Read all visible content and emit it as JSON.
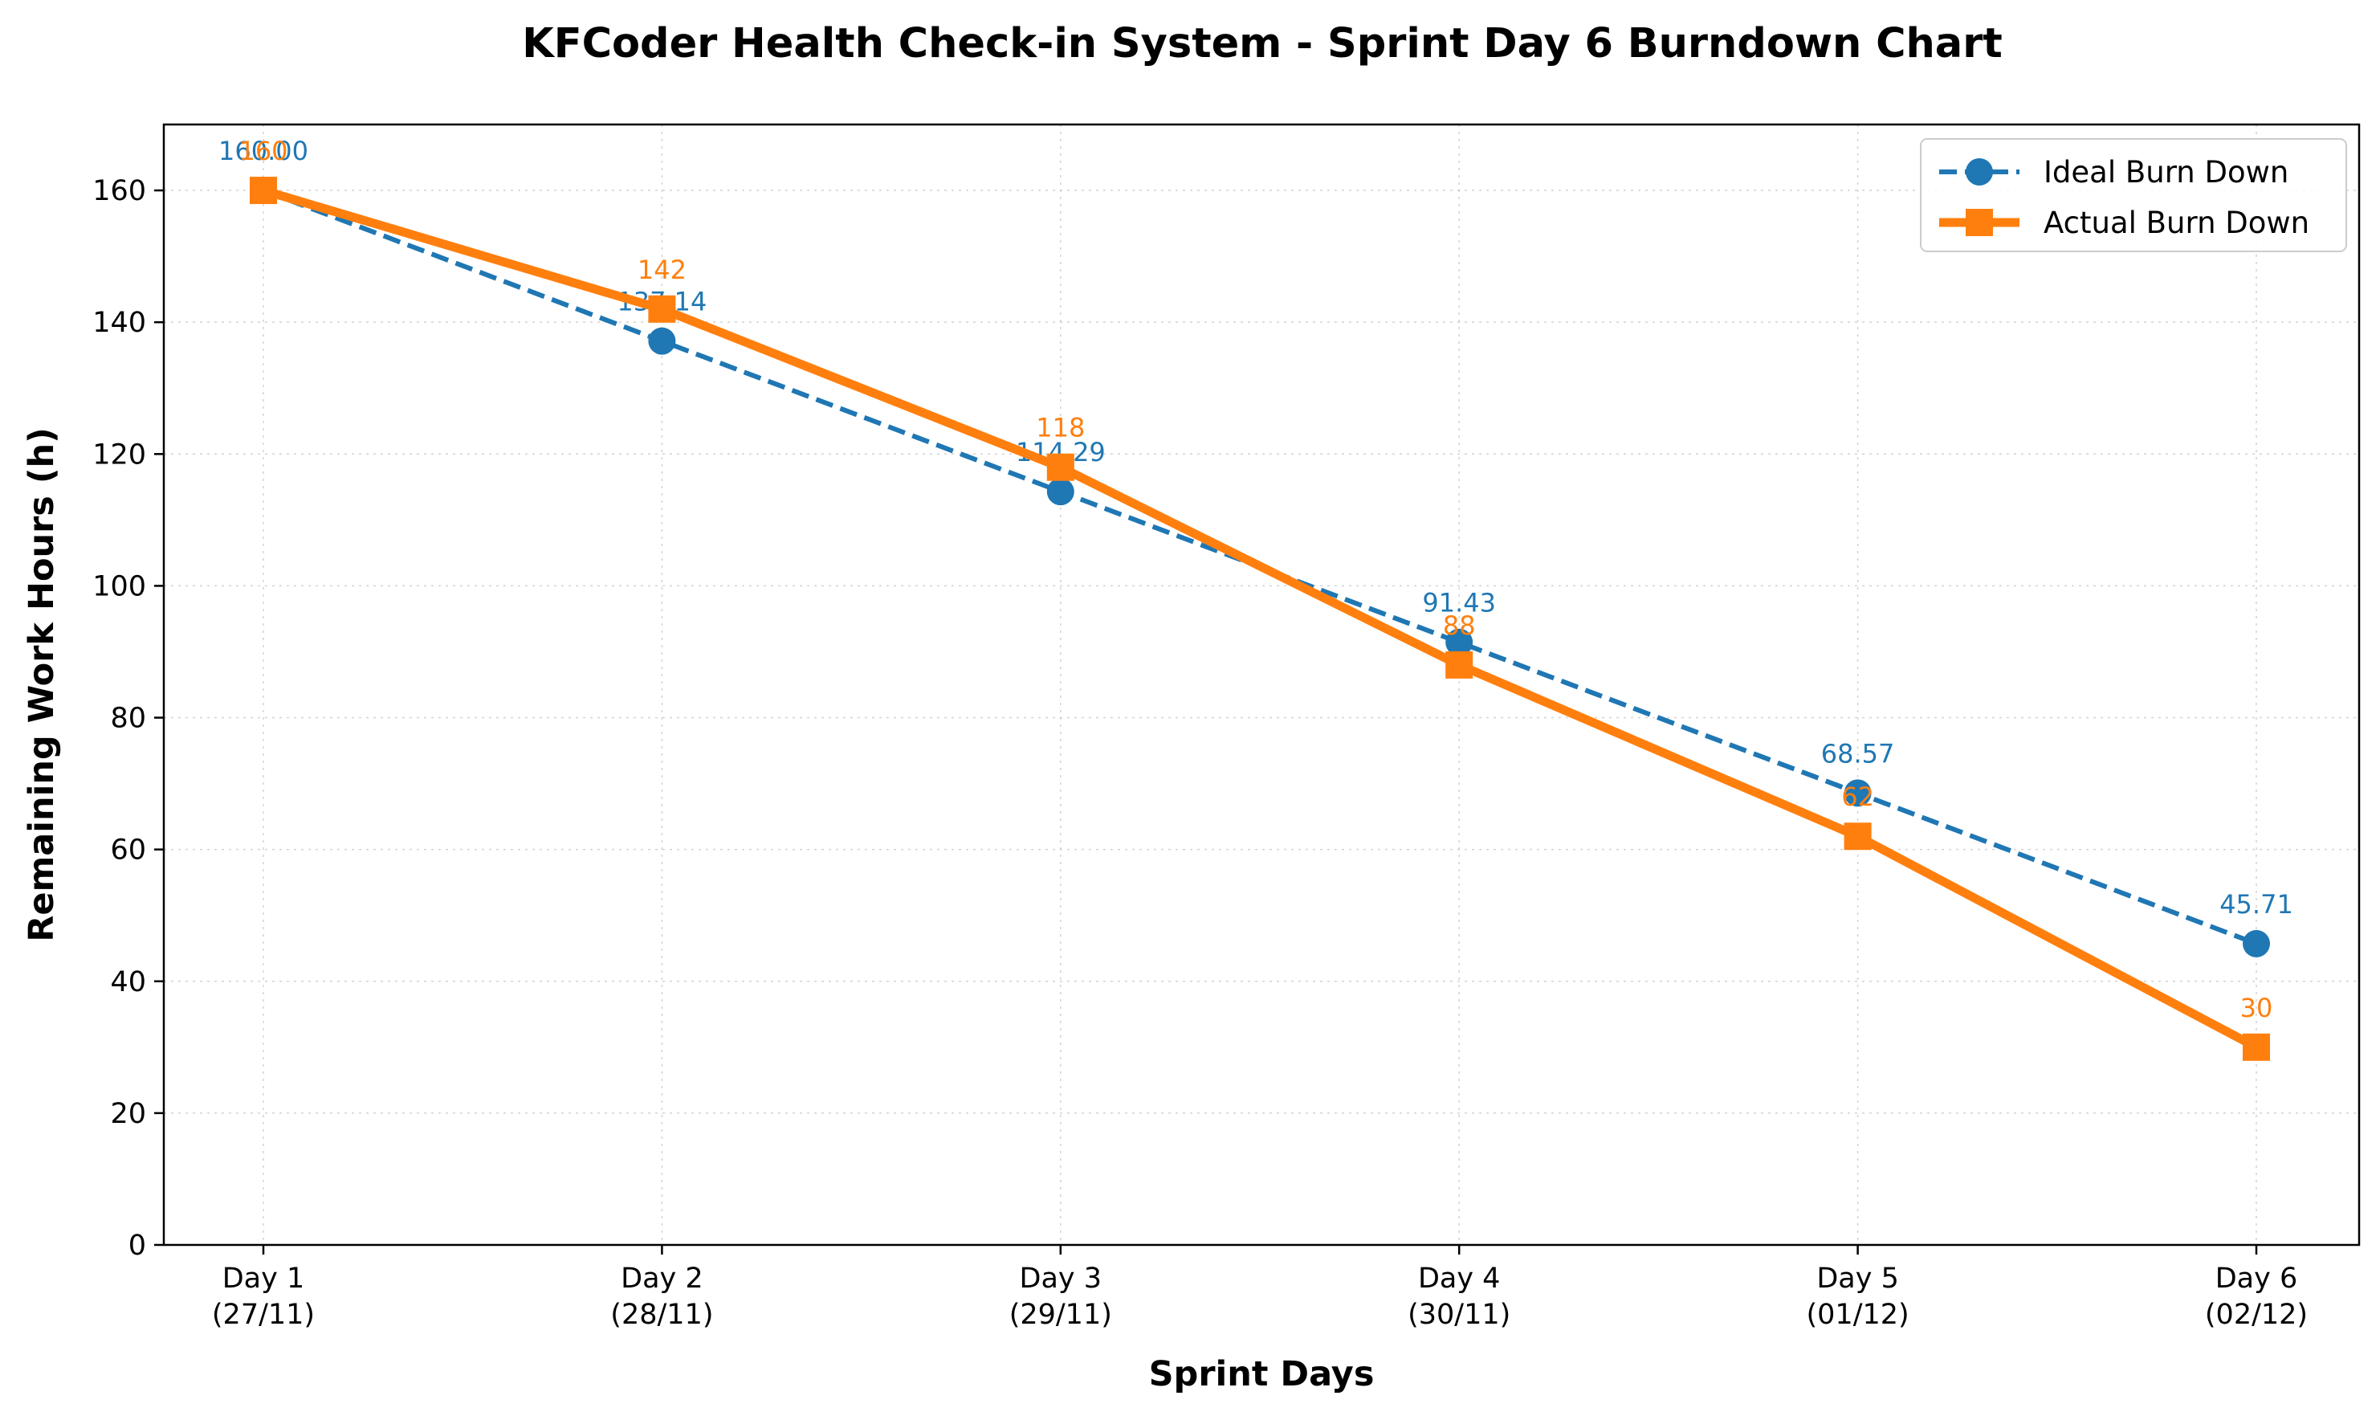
{
  "chart_data": {
    "type": "line",
    "title": "KFCoder Health Check-in System - Sprint Day 6 Burndown Chart",
    "xlabel": "Sprint Days",
    "ylabel": "Remaining Work Hours (h)",
    "categories": [
      [
        "Day 1",
        "(27/11)"
      ],
      [
        "Day 2",
        "(28/11)"
      ],
      [
        "Day 3",
        "(29/11)"
      ],
      [
        "Day 4",
        "(30/11)"
      ],
      [
        "Day 5",
        "(01/12)"
      ],
      [
        "Day 6",
        "(02/12)"
      ]
    ],
    "ylim": [
      0,
      170
    ],
    "yticks": [
      0,
      20,
      40,
      60,
      80,
      100,
      120,
      140,
      160
    ],
    "grid": true,
    "legend_position": "top-right",
    "series": [
      {
        "name": "Ideal Burn Down",
        "values": [
          160.0,
          137.14,
          114.29,
          91.43,
          68.57,
          45.71
        ],
        "labels": [
          "160.00",
          "137.14",
          "114.29",
          "91.43",
          "68.57",
          "45.71"
        ],
        "color": "#1f77b4",
        "line_style": "dashed",
        "marker": "circle"
      },
      {
        "name": "Actual Burn Down",
        "values": [
          160,
          142,
          118,
          88,
          62,
          30
        ],
        "labels": [
          "160",
          "142",
          "118",
          "88",
          "62",
          "30"
        ],
        "color": "#ff7f0e",
        "line_style": "solid",
        "marker": "square"
      }
    ]
  }
}
